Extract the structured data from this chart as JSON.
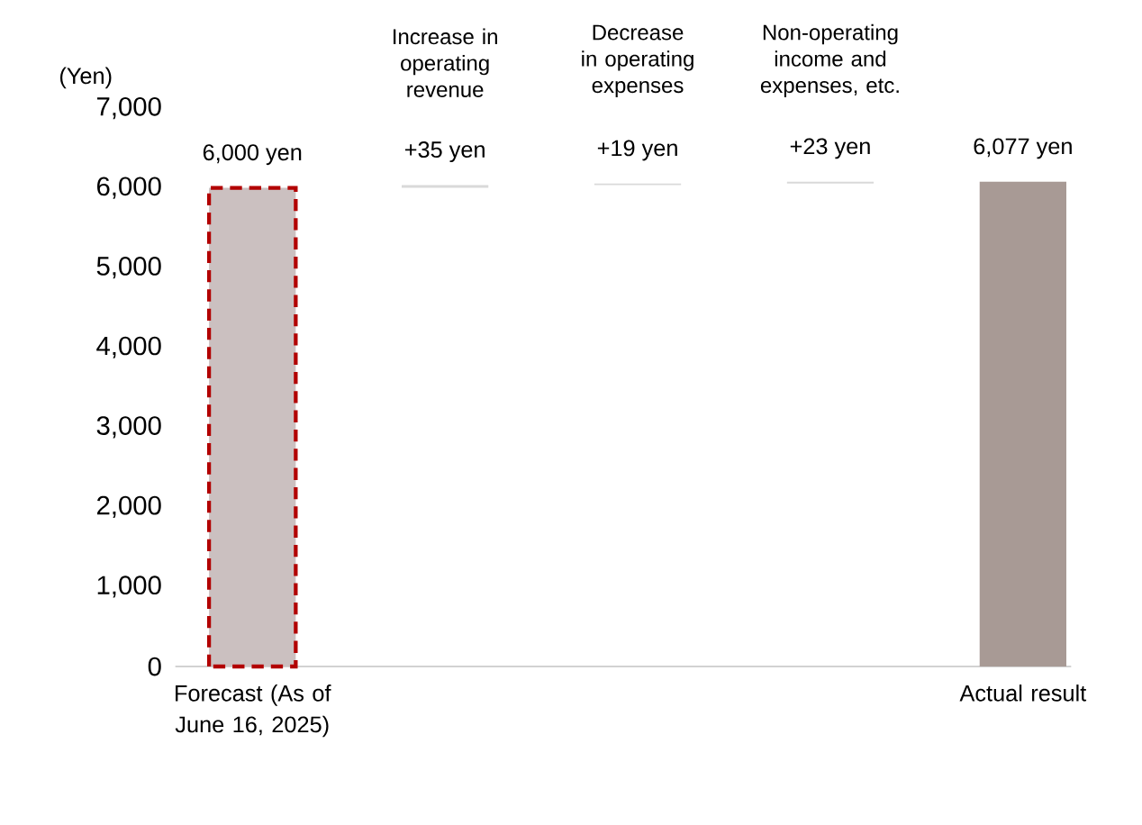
{
  "chart_data": {
    "type": "bar",
    "ylabel": "(Yen)",
    "categories": [
      "Forecast (As of June 16, 2025)",
      "Increase in operating revenue",
      "Decrease in operating expenses",
      "Non-operating income and expenses, etc.",
      "Actual result"
    ],
    "values": [
      6000,
      35,
      19,
      23,
      6077
    ],
    "base": [
      0,
      6000,
      6035,
      6054,
      0
    ],
    "value_labels": [
      "6,000 yen",
      "+35 yen",
      "+19 yen",
      "+23 yen",
      "6,077 yen"
    ],
    "colors": [
      "#cbc0c0",
      "#d9d9d9",
      "#d9d9d9",
      "#d9d9d9",
      "#a89a95"
    ],
    "ylim": [
      0,
      7000
    ],
    "yticks": [
      0,
      {
        "value": 1000,
        "label": "1,000"
      },
      {
        "value": 2000,
        "label": "2,000"
      },
      {
        "value": 3000,
        "label": "3,000"
      },
      {
        "value": 4000,
        "label": "4,000"
      },
      {
        "value": 5000,
        "label": "5,000"
      },
      {
        "value": 6000,
        "label": "6,000"
      },
      {
        "value": 7000,
        "label": "7,000"
      }
    ],
    "grid": false
  }
}
